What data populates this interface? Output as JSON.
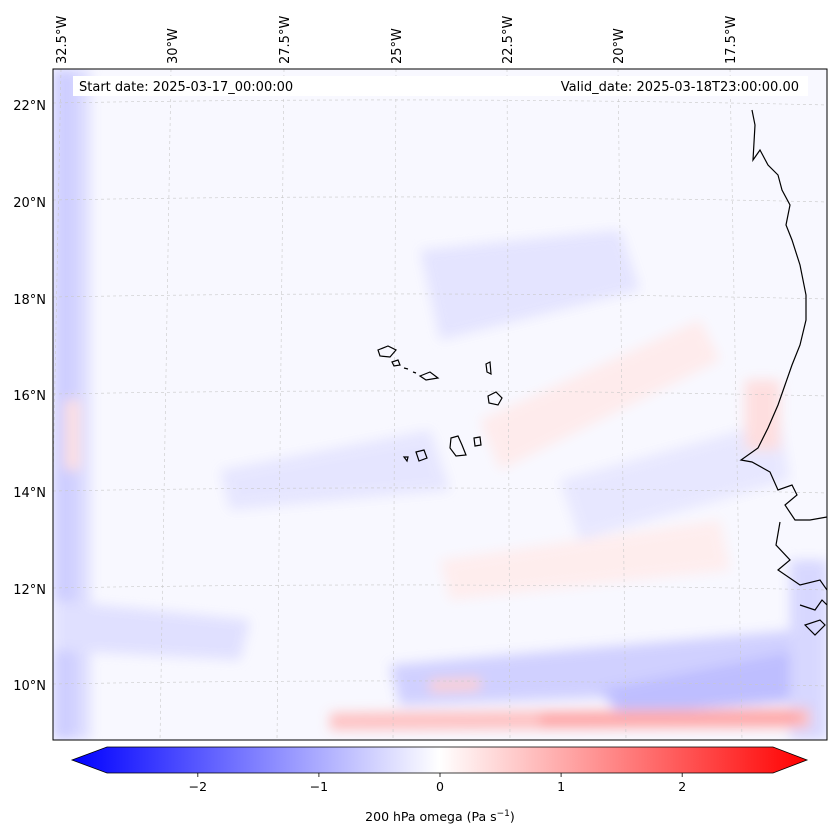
{
  "map": {
    "start_date": "Start date: 2025-03-17_00:00:00",
    "valid_date": "Valid_date: 2025-03-18T23:00:00.00",
    "lon_labels": [
      "32.5°W",
      "30°W",
      "27.5°W",
      "25°W",
      "22.5°W",
      "20°W",
      "17.5°W"
    ],
    "lat_labels": [
      "22°N",
      "20°N",
      "18°N",
      "16°N",
      "14°N",
      "12°N",
      "10°N"
    ],
    "variable": "200 hPa omega",
    "units": "Pa s",
    "units_superscript": "−1",
    "grid": true,
    "field_colors": {
      "negative": "#0000ff",
      "zero": "#ffffff",
      "positive": "#ff0000"
    }
  },
  "colorbar": {
    "min": -2.75,
    "max": 2.75,
    "ticks": [
      -2,
      -1,
      0,
      1,
      2
    ],
    "tick_labels": [
      "−2",
      "−1",
      "0",
      "1",
      "2"
    ],
    "extend": "both"
  }
}
